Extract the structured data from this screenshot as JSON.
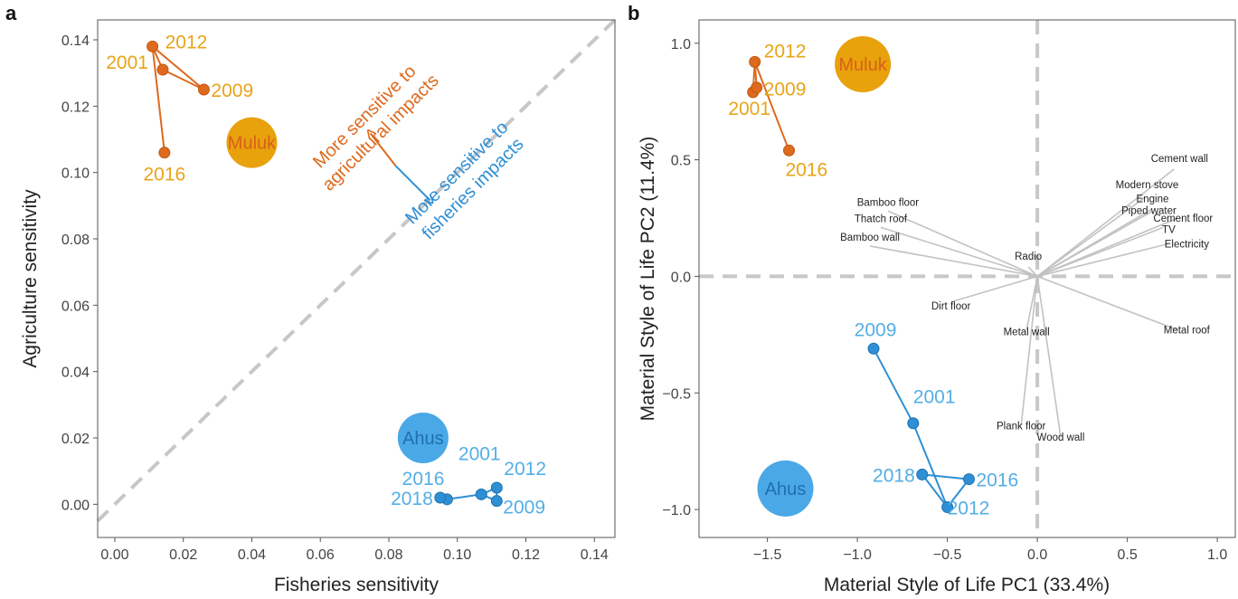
{
  "chart_data": [
    {
      "panel_label": "a",
      "type": "scatter",
      "xlabel": "Fisheries sensitivity",
      "ylabel": "Agriculture sensitivity",
      "xlim": [
        -0.005,
        0.146
      ],
      "ylim": [
        -0.01,
        0.146
      ],
      "x_ticks": [
        "0.00",
        "0.02",
        "0.04",
        "0.06",
        "0.08",
        "0.10",
        "0.12",
        "0.14"
      ],
      "y_ticks": [
        "0.00",
        "0.02",
        "0.04",
        "0.06",
        "0.08",
        "0.10",
        "0.12",
        "0.14"
      ],
      "grid": false,
      "reference_line": "y = x (dashed)",
      "series": [
        {
          "name": "Muluk",
          "color": "#dd6a1e",
          "label_color": "#e8a418",
          "path_order": [
            "2016",
            "2012",
            "2009",
            "2001",
            "2012"
          ],
          "points": [
            {
              "label": "2001",
              "x": 0.014,
              "y": 0.131
            },
            {
              "label": "2009",
              "x": 0.026,
              "y": 0.125
            },
            {
              "label": "2012",
              "x": 0.011,
              "y": 0.138
            },
            {
              "label": "2016",
              "x": 0.0145,
              "y": 0.106
            }
          ],
          "centroid": {
            "x": 0.04,
            "y": 0.109
          }
        },
        {
          "name": "Ahus",
          "color": "#2f8fd4",
          "label_color": "#54aee6",
          "path_order": [
            "2018",
            "2016",
            "2001",
            "2012",
            "2009",
            "2001"
          ],
          "points": [
            {
              "label": "2001",
              "x": 0.107,
              "y": 0.003
            },
            {
              "label": "2009",
              "x": 0.1115,
              "y": 0.001
            },
            {
              "label": "2012",
              "x": 0.1115,
              "y": 0.005
            },
            {
              "label": "2016",
              "x": 0.097,
              "y": 0.0015
            },
            {
              "label": "2018",
              "x": 0.095,
              "y": 0.002
            }
          ],
          "centroid": {
            "x": 0.09,
            "y": 0.02
          }
        }
      ],
      "annotations": {
        "agri": "More sensitive to\nagricultural impacts",
        "fish": "More sensitive to\nfisheries impacts",
        "agri_color": "#dd6a1e",
        "fish_color": "#2f8fd4"
      }
    },
    {
      "panel_label": "b",
      "type": "scatter",
      "xlabel": "Material Style of Life PC1 (33.4%)",
      "ylabel": "Material Style of Life PC2 (11.4%)",
      "xlim": [
        -1.88,
        1.1
      ],
      "ylim": [
        -1.12,
        1.1
      ],
      "x_ticks": [
        "−1.5",
        "−1.0",
        "−0.5",
        "0.0",
        "0.5",
        "1.0"
      ],
      "y_ticks": [
        "1.0",
        "0.5",
        "0.0",
        "−0.5",
        "−1.0"
      ],
      "grid": false,
      "reference_lines": [
        "x = 0 (dashed)",
        "y = 0 (dashed)"
      ],
      "series": [
        {
          "name": "Muluk",
          "color": "#dd6a1e",
          "label_color": "#e8a418",
          "path_order": [
            "2016",
            "2012",
            "2009",
            "2001",
            "2012"
          ],
          "points": [
            {
              "label": "2001",
              "x": -1.58,
              "y": 0.79
            },
            {
              "label": "2009",
              "x": -1.56,
              "y": 0.81
            },
            {
              "label": "2012",
              "x": -1.57,
              "y": 0.92
            },
            {
              "label": "2016",
              "x": -1.38,
              "y": 0.54
            }
          ],
          "centroid": {
            "x": -0.97,
            "y": 0.91
          }
        },
        {
          "name": "Ahus",
          "color": "#2f8fd4",
          "label_color": "#54aee6",
          "path_order": [
            "2009",
            "2001",
            "2012",
            "2016",
            "2018",
            "2012"
          ],
          "points": [
            {
              "label": "2001",
              "x": -0.69,
              "y": -0.63
            },
            {
              "label": "2009",
              "x": -0.91,
              "y": -0.31
            },
            {
              "label": "2012",
              "x": -0.5,
              "y": -0.99
            },
            {
              "label": "2016",
              "x": -0.38,
              "y": -0.87
            },
            {
              "label": "2018",
              "x": -0.64,
              "y": -0.85
            }
          ],
          "centroid": {
            "x": -1.4,
            "y": -0.91
          }
        }
      ],
      "loadings": [
        {
          "name": "Cement wall",
          "x": 0.76,
          "y": 0.46
        },
        {
          "name": "Modern stove",
          "x": 0.6,
          "y": 0.34
        },
        {
          "name": "Engine",
          "x": 0.64,
          "y": 0.29
        },
        {
          "name": "Piped water",
          "x": 0.64,
          "y": 0.28
        },
        {
          "name": "Cement floor",
          "x": 0.78,
          "y": 0.25
        },
        {
          "name": "TV",
          "x": 0.7,
          "y": 0.21
        },
        {
          "name": "Electricity",
          "x": 0.73,
          "y": 0.14
        },
        {
          "name": "Bamboo floor",
          "x": -0.83,
          "y": 0.28
        },
        {
          "name": "Thatch roof",
          "x": -0.87,
          "y": 0.21
        },
        {
          "name": "Bamboo wall",
          "x": -0.93,
          "y": 0.13
        },
        {
          "name": "Radio",
          "x": -0.05,
          "y": 0.04
        },
        {
          "name": "Dirt floor",
          "x": -0.48,
          "y": -0.11
        },
        {
          "name": "Metal wall",
          "x": -0.06,
          "y": -0.23
        },
        {
          "name": "Metal roof",
          "x": 0.78,
          "y": -0.23
        },
        {
          "name": "Plank floor",
          "x": -0.09,
          "y": -0.64
        },
        {
          "name": "Wood wall",
          "x": 0.13,
          "y": -0.69
        }
      ]
    }
  ]
}
